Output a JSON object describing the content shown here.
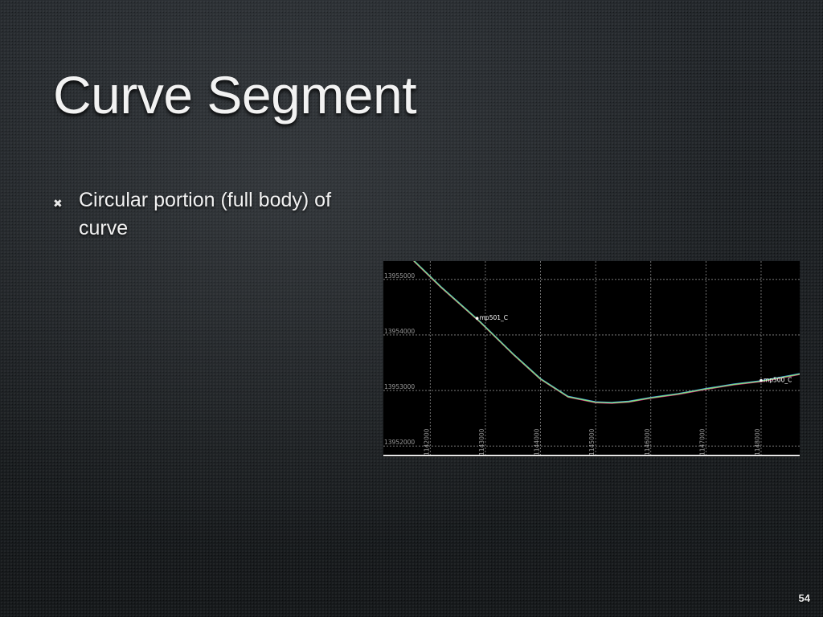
{
  "slide": {
    "title": "Curve Segment",
    "bullets": [
      {
        "text": "Circular portion (full body) of curve"
      }
    ],
    "page_number": "54"
  },
  "chart_data": {
    "type": "line",
    "background": "#000000",
    "grid": true,
    "grid_color": "#8a8a8a",
    "tick_label_color": "#9a9a9a",
    "xlim": [
      1141150,
      1148700
    ],
    "ylim": [
      13951800,
      13955330
    ],
    "x_ticks": [
      1142000,
      1143000,
      1144000,
      1145000,
      1146000,
      1147000,
      1148000
    ],
    "y_ticks": [
      13952000,
      13953000,
      13954000,
      13955000
    ],
    "series": [
      {
        "color": "#e0207a",
        "points": [
          [
            1141700,
            13955330
          ],
          [
            1142200,
            13954850
          ],
          [
            1142900,
            13954230
          ],
          [
            1143500,
            13953650
          ],
          [
            1144000,
            13953200
          ],
          [
            1144500,
            13952880
          ],
          [
            1145000,
            13952780
          ],
          [
            1145300,
            13952770
          ],
          [
            1145600,
            13952790
          ],
          [
            1146000,
            13952860
          ],
          [
            1146500,
            13952930
          ],
          [
            1147000,
            13953020
          ],
          [
            1147500,
            13953100
          ],
          [
            1148000,
            13953160
          ],
          [
            1148500,
            13953250
          ],
          [
            1148700,
            13953290
          ]
        ]
      },
      {
        "color": "#3a8cff",
        "points": [
          [
            1141700,
            13955345
          ],
          [
            1142200,
            13954865
          ],
          [
            1142900,
            13954245
          ],
          [
            1143500,
            13953665
          ],
          [
            1144000,
            13953215
          ],
          [
            1144500,
            13952895
          ],
          [
            1145000,
            13952795
          ],
          [
            1145300,
            13952785
          ],
          [
            1145600,
            13952805
          ],
          [
            1146000,
            13952875
          ],
          [
            1146500,
            13952945
          ],
          [
            1147000,
            13953035
          ],
          [
            1147500,
            13953115
          ],
          [
            1148000,
            13953175
          ],
          [
            1148500,
            13953265
          ],
          [
            1148700,
            13953305
          ]
        ]
      },
      {
        "color": "#7fe07a",
        "points": [
          [
            1141700,
            13955338
          ],
          [
            1142200,
            13954858
          ],
          [
            1142900,
            13954238
          ],
          [
            1143500,
            13953658
          ],
          [
            1144000,
            13953208
          ],
          [
            1144500,
            13952888
          ],
          [
            1145000,
            13952788
          ],
          [
            1145300,
            13952778
          ],
          [
            1145600,
            13952798
          ],
          [
            1146000,
            13952868
          ],
          [
            1146500,
            13952938
          ],
          [
            1147000,
            13953028
          ],
          [
            1147500,
            13953108
          ],
          [
            1148000,
            13953168
          ],
          [
            1148500,
            13953258
          ],
          [
            1148700,
            13953298
          ]
        ]
      }
    ],
    "markers": [
      {
        "label": "mp501_C",
        "x": 1142850,
        "y": 13954300
      },
      {
        "label": "mp500_C",
        "x": 1148000,
        "y": 13953180
      }
    ]
  }
}
